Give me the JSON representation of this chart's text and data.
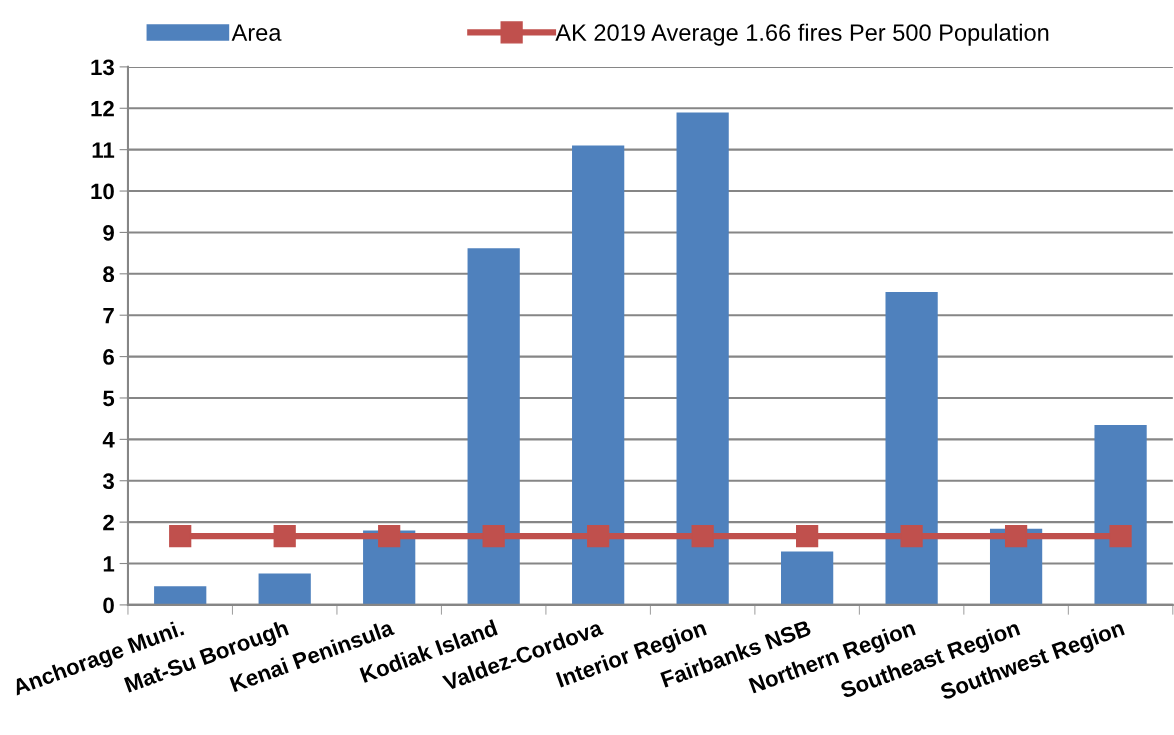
{
  "chart_data": {
    "type": "bar",
    "categories": [
      "Anchorage Muni.",
      "Mat-Su Borough",
      "Kenai Peninsula",
      "Kodiak Island",
      "Valdez-Cordova",
      "Interior Region",
      "Fairbanks NSB",
      "Northern Region",
      "Southeast Region",
      "Southwest Region"
    ],
    "series": [
      {
        "name": "Area",
        "color": "#4f81bd",
        "values": [
          0.45,
          0.76,
          1.8,
          8.62,
          11.1,
          11.9,
          1.29,
          7.56,
          1.84,
          4.35
        ]
      },
      {
        "name": "AK 2019 Average 1.66 fires Per 500 Population",
        "type": "line",
        "color": "#c0504d",
        "marker": "square",
        "line_style": "solid",
        "values": [
          1.66,
          1.66,
          1.66,
          1.66,
          1.66,
          1.66,
          1.66,
          1.66,
          1.66,
          1.66
        ]
      }
    ],
    "ylim": [
      0,
      13
    ],
    "yticks": [
      0,
      1,
      2,
      3,
      4,
      5,
      6,
      7,
      8,
      9,
      10,
      11,
      12,
      13
    ],
    "grid": "y",
    "legend": "top"
  }
}
